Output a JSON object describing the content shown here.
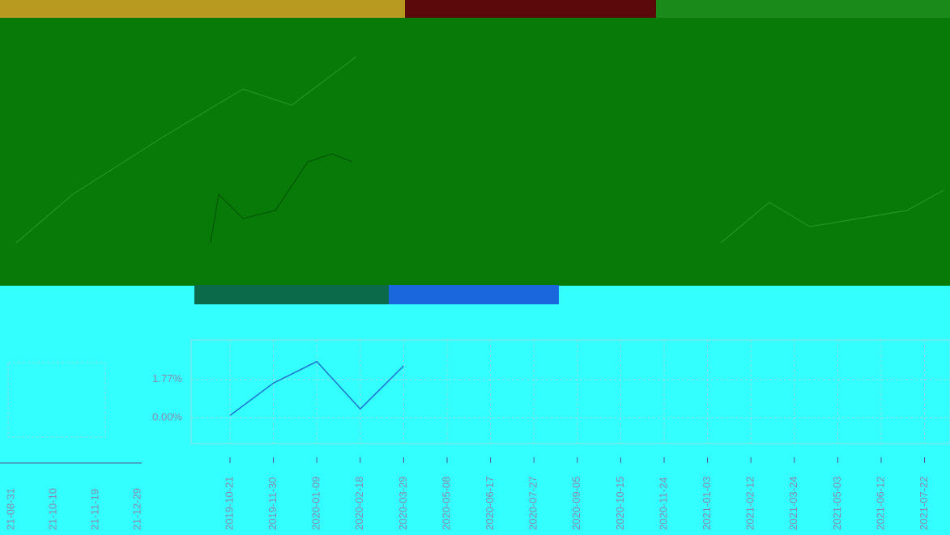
{
  "chart_data": {
    "type": "line",
    "categories": [
      "2019-10-21",
      "2019-11-30",
      "2020-01-09",
      "2020-02-18",
      "2020-03-29",
      "2020-05-08",
      "2020-06-17",
      "2020-07-27",
      "2020-09-05",
      "2020-10-15",
      "2020-11-24",
      "2021-01-03",
      "2021-02-12",
      "2021-03-24",
      "2021-05-03",
      "2021-06-12",
      "2021-07-22"
    ],
    "series": [
      {
        "color": "#1f6fd0",
        "values": [
          0.1,
          1.6,
          2.6,
          0.4,
          2.4,
          null,
          null,
          null,
          null,
          null,
          null,
          null,
          null,
          null,
          null,
          null,
          null
        ]
      }
    ],
    "ylim": [
      -1.2,
      3.6
    ],
    "yticks": [
      {
        "value": 0,
        "label": "0.00%"
      },
      {
        "value": 1.77,
        "label": "1.77%"
      }
    ],
    "grid": true
  },
  "left_panel": {
    "x_labels": [
      "21-08-31",
      "21-10-10",
      "21-11-19",
      "21-12-29"
    ]
  }
}
